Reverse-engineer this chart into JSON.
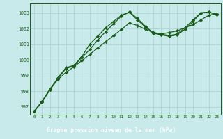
{
  "title": "Graphe pression niveau de la mer (hPa)",
  "bg_color": "#c8eaea",
  "grid_color": "#a8d0d0",
  "line_color": "#1a5c1a",
  "footer_bg": "#2d6e2d",
  "footer_text_color": "#ffffff",
  "xlim": [
    -0.5,
    23.5
  ],
  "ylim": [
    996.5,
    1003.6
  ],
  "yticks": [
    997,
    998,
    999,
    1000,
    1001,
    1002,
    1003
  ],
  "xticks": [
    0,
    1,
    2,
    3,
    4,
    5,
    6,
    7,
    8,
    9,
    10,
    11,
    12,
    13,
    14,
    15,
    16,
    17,
    18,
    19,
    20,
    21,
    22,
    23
  ],
  "series1_x": [
    0,
    1,
    2,
    3,
    4,
    5,
    6,
    7,
    8,
    9,
    10,
    11,
    12,
    13,
    14,
    15,
    16,
    17,
    18,
    19,
    20,
    21,
    22,
    23
  ],
  "series1_y": [
    996.7,
    997.35,
    998.1,
    998.85,
    999.5,
    999.65,
    1000.2,
    1001.0,
    1001.5,
    1002.05,
    1002.45,
    1002.85,
    1003.05,
    1002.55,
    1002.1,
    1001.75,
    1001.65,
    1001.55,
    1001.65,
    1002.05,
    1002.55,
    1003.0,
    1003.05,
    1002.9
  ],
  "series2_x": [
    0,
    1,
    2,
    3,
    4,
    5,
    6,
    7,
    8,
    9,
    10,
    11,
    12,
    13,
    14,
    15,
    16,
    17,
    18,
    19,
    20,
    21,
    22,
    23
  ],
  "series2_y": [
    996.7,
    997.3,
    998.1,
    998.75,
    999.2,
    999.55,
    999.95,
    1000.35,
    1000.75,
    1001.15,
    1001.55,
    1001.95,
    1002.35,
    1002.2,
    1001.95,
    1001.75,
    1001.65,
    1001.75,
    1001.85,
    1002.05,
    1002.25,
    1002.55,
    1002.85,
    1002.95
  ],
  "series3_x": [
    0,
    1,
    2,
    3,
    4,
    5,
    6,
    7,
    8,
    9,
    10,
    11,
    12,
    13,
    14,
    15,
    16,
    17,
    18,
    19,
    20,
    21,
    22,
    23
  ],
  "series3_y": [
    996.7,
    997.35,
    998.15,
    998.8,
    999.45,
    999.6,
    1000.15,
    1000.65,
    1001.25,
    1001.8,
    1002.3,
    1002.8,
    1003.05,
    1002.65,
    1002.15,
    1001.7,
    1001.6,
    1001.5,
    1001.6,
    1001.95,
    1002.45,
    1003.0,
    1003.05,
    1002.9
  ]
}
